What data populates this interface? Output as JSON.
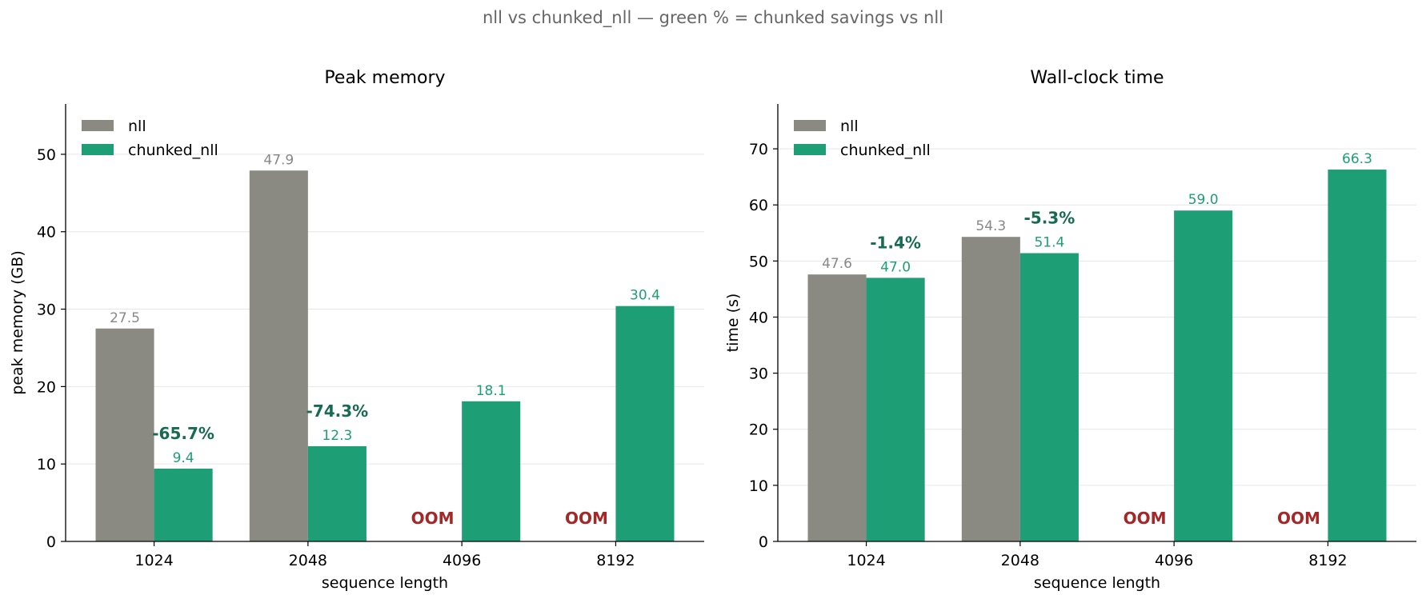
{
  "suptitle": "nll vs chunked_nll  —  green % = chunked savings vs nll",
  "colors": {
    "nll": "#8a8a82",
    "chunked": "#1e9e74",
    "nll_label": "#888888",
    "chunked_label": "#1e9e74",
    "savings": "#176b50",
    "oom": "#a32828",
    "grid": "#e6e6e6"
  },
  "chart_data": [
    {
      "type": "bar",
      "title": "Peak memory",
      "xlabel": "sequence length",
      "ylabel": "peak memory (GB)",
      "ylim": [
        0,
        56.5
      ],
      "yticks": [
        0,
        10,
        20,
        30,
        40,
        50
      ],
      "grid": "y",
      "legend_position": "upper-left",
      "categories": [
        "1024",
        "2048",
        "4096",
        "8192"
      ],
      "series": [
        {
          "name": "nll",
          "values": [
            27.5,
            47.9,
            null,
            null
          ],
          "labels": [
            "27.5",
            "47.9",
            "",
            ""
          ]
        },
        {
          "name": "chunked_nll",
          "values": [
            9.4,
            12.3,
            18.1,
            30.4
          ],
          "labels": [
            "9.4",
            "12.3",
            "18.1",
            "30.4"
          ]
        }
      ],
      "annotations": {
        "savings": [
          "-65.7%",
          "-74.3%",
          "",
          ""
        ],
        "oom": [
          "",
          "",
          "OOM",
          "OOM"
        ]
      }
    },
    {
      "type": "bar",
      "title": "Wall-clock time",
      "xlabel": "sequence length",
      "ylabel": "time (s)",
      "ylim": [
        0,
        78
      ],
      "yticks": [
        0,
        10,
        20,
        30,
        40,
        50,
        60,
        70
      ],
      "grid": "y",
      "legend_position": "upper-left",
      "categories": [
        "1024",
        "2048",
        "4096",
        "8192"
      ],
      "series": [
        {
          "name": "nll",
          "values": [
            47.6,
            54.3,
            null,
            null
          ],
          "labels": [
            "47.6",
            "54.3",
            "",
            ""
          ]
        },
        {
          "name": "chunked_nll",
          "values": [
            47.0,
            51.4,
            59.0,
            66.3
          ],
          "labels": [
            "47.0",
            "51.4",
            "59.0",
            "66.3"
          ]
        }
      ],
      "annotations": {
        "savings": [
          "-1.4%",
          "-5.3%",
          "",
          ""
        ],
        "oom": [
          "",
          "",
          "OOM",
          "OOM"
        ]
      }
    }
  ]
}
